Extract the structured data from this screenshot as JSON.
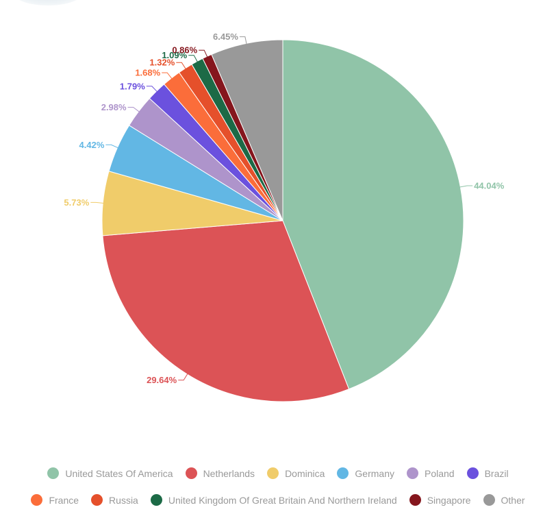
{
  "chart_data": {
    "type": "pie",
    "title": "",
    "start_angle_deg": 0,
    "direction": "clockwise",
    "slices": [
      {
        "label": "United States Of America",
        "value": 44.04,
        "display": "44.04%",
        "color": "#90c4a8"
      },
      {
        "label": "Netherlands",
        "value": 29.64,
        "display": "29.64%",
        "color": "#dc5356"
      },
      {
        "label": "Dominica",
        "value": 5.73,
        "display": "5.73%",
        "color": "#f0cc6a"
      },
      {
        "label": "Germany",
        "value": 4.42,
        "display": "4.42%",
        "color": "#62b7e4"
      },
      {
        "label": "Poland",
        "value": 2.98,
        "display": "2.98%",
        "color": "#ae94cb"
      },
      {
        "label": "Brazil",
        "value": 1.79,
        "display": "1.79%",
        "color": "#6b51de"
      },
      {
        "label": "France",
        "value": 1.68,
        "display": "1.68%",
        "color": "#fb6d3a"
      },
      {
        "label": "Russia",
        "value": 1.32,
        "display": "1.32%",
        "color": "#e5502b"
      },
      {
        "label": "United Kingdom Of Great Britain And Northern Ireland",
        "value": 1.09,
        "display": "1.09%",
        "color": "#1c6a46"
      },
      {
        "label": "Singapore",
        "value": 0.86,
        "display": "0.86%",
        "color": "#85161d"
      },
      {
        "label": "Other",
        "value": 6.45,
        "display": "6.45%",
        "color": "#999999"
      }
    ],
    "legend_position": "bottom"
  }
}
